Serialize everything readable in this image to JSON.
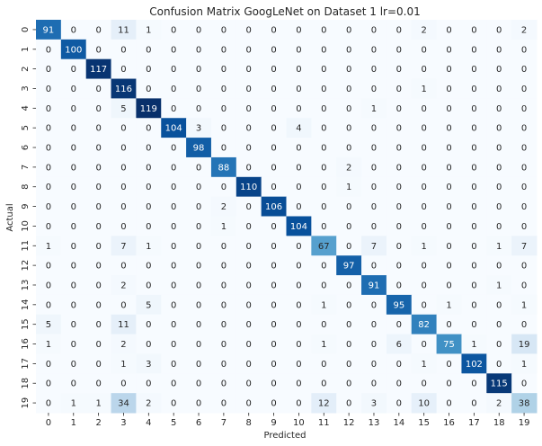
{
  "chart_data": {
    "type": "heatmap",
    "title": "Confusion Matrix GoogLeNet on Dataset 1 lr=0.01",
    "xlabel": "Predicted",
    "ylabel": "Actual",
    "x_ticks": [
      "0",
      "1",
      "2",
      "3",
      "4",
      "5",
      "6",
      "7",
      "8",
      "9",
      "10",
      "11",
      "12",
      "13",
      "14",
      "15",
      "16",
      "17",
      "18",
      "19"
    ],
    "y_ticks": [
      "0",
      "1",
      "2",
      "3",
      "4",
      "5",
      "6",
      "7",
      "8",
      "9",
      "10",
      "11",
      "12",
      "13",
      "14",
      "15",
      "16",
      "17",
      "18",
      "19"
    ],
    "colormap": "Blues",
    "vmin": 0,
    "vmax": 119,
    "colorbar": false,
    "matrix": [
      [
        91,
        0,
        0,
        11,
        1,
        0,
        0,
        0,
        0,
        0,
        0,
        0,
        0,
        0,
        0,
        2,
        0,
        0,
        0,
        2
      ],
      [
        0,
        100,
        0,
        0,
        0,
        0,
        0,
        0,
        0,
        0,
        0,
        0,
        0,
        0,
        0,
        0,
        0,
        0,
        0,
        0
      ],
      [
        0,
        0,
        117,
        0,
        0,
        0,
        0,
        0,
        0,
        0,
        0,
        0,
        0,
        0,
        0,
        0,
        0,
        0,
        0,
        0
      ],
      [
        0,
        0,
        0,
        116,
        0,
        0,
        0,
        0,
        0,
        0,
        0,
        0,
        0,
        0,
        0,
        1,
        0,
        0,
        0,
        0
      ],
      [
        0,
        0,
        0,
        5,
        119,
        0,
        0,
        0,
        0,
        0,
        0,
        0,
        0,
        1,
        0,
        0,
        0,
        0,
        0,
        0
      ],
      [
        0,
        0,
        0,
        0,
        0,
        104,
        3,
        0,
        0,
        0,
        4,
        0,
        0,
        0,
        0,
        0,
        0,
        0,
        0,
        0
      ],
      [
        0,
        0,
        0,
        0,
        0,
        0,
        98,
        0,
        0,
        0,
        0,
        0,
        0,
        0,
        0,
        0,
        0,
        0,
        0,
        0
      ],
      [
        0,
        0,
        0,
        0,
        0,
        0,
        0,
        88,
        0,
        0,
        0,
        0,
        2,
        0,
        0,
        0,
        0,
        0,
        0,
        0
      ],
      [
        0,
        0,
        0,
        0,
        0,
        0,
        0,
        0,
        110,
        0,
        0,
        0,
        1,
        0,
        0,
        0,
        0,
        0,
        0,
        0
      ],
      [
        0,
        0,
        0,
        0,
        0,
        0,
        0,
        2,
        0,
        106,
        0,
        0,
        0,
        0,
        0,
        0,
        0,
        0,
        0,
        0
      ],
      [
        0,
        0,
        0,
        0,
        0,
        0,
        0,
        1,
        0,
        0,
        104,
        0,
        0,
        0,
        0,
        0,
        0,
        0,
        0,
        0
      ],
      [
        1,
        0,
        0,
        7,
        1,
        0,
        0,
        0,
        0,
        0,
        0,
        67,
        0,
        7,
        0,
        1,
        0,
        0,
        1,
        7
      ],
      [
        0,
        0,
        0,
        0,
        0,
        0,
        0,
        0,
        0,
        0,
        0,
        0,
        97,
        0,
        0,
        0,
        0,
        0,
        0,
        0
      ],
      [
        0,
        0,
        0,
        2,
        0,
        0,
        0,
        0,
        0,
        0,
        0,
        0,
        0,
        91,
        0,
        0,
        0,
        0,
        1,
        0
      ],
      [
        0,
        0,
        0,
        0,
        5,
        0,
        0,
        0,
        0,
        0,
        0,
        1,
        0,
        0,
        95,
        0,
        1,
        0,
        0,
        1
      ],
      [
        5,
        0,
        0,
        11,
        0,
        0,
        0,
        0,
        0,
        0,
        0,
        0,
        0,
        0,
        0,
        82,
        0,
        0,
        0,
        0
      ],
      [
        1,
        0,
        0,
        2,
        0,
        0,
        0,
        0,
        0,
        0,
        0,
        1,
        0,
        0,
        6,
        0,
        75,
        1,
        0,
        19
      ],
      [
        0,
        0,
        0,
        1,
        3,
        0,
        0,
        0,
        0,
        0,
        0,
        0,
        0,
        0,
        0,
        1,
        0,
        102,
        0,
        1
      ],
      [
        0,
        0,
        0,
        0,
        0,
        0,
        0,
        0,
        0,
        0,
        0,
        0,
        0,
        0,
        0,
        0,
        0,
        0,
        115,
        0
      ],
      [
        0,
        1,
        1,
        34,
        2,
        0,
        0,
        0,
        0,
        0,
        0,
        12,
        0,
        3,
        0,
        10,
        0,
        0,
        2,
        38
      ]
    ]
  }
}
